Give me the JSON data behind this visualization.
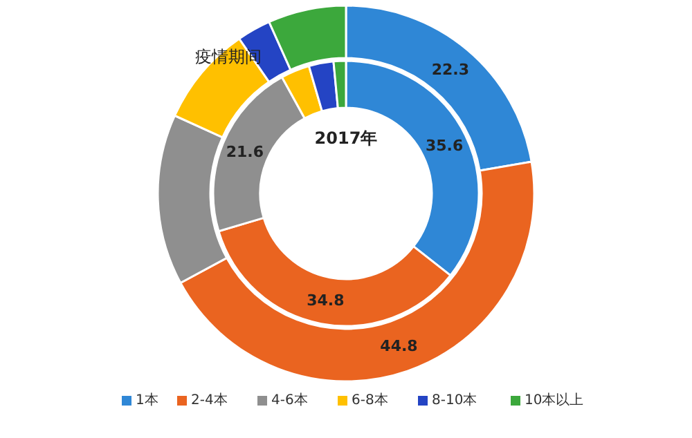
{
  "chart_data": {
    "type": "donut",
    "categories": [
      "1本",
      "2-4本",
      "4-6本",
      "6-8本",
      "8-10本",
      "10本以上"
    ],
    "colors": [
      "#2f87d6",
      "#ea6420",
      "#8f8f8f",
      "#ffc000",
      "#2444c4",
      "#3ca83c"
    ],
    "series": [
      {
        "name": "疫情期间",
        "values": [
          22.3,
          44.8,
          14.7,
          8.6,
          2.9,
          6.7
        ],
        "value_labels": [
          "22.3",
          "44.8",
          null,
          null,
          null,
          null
        ]
      },
      {
        "name": "2017年",
        "values": [
          35.6,
          34.8,
          21.6,
          3.5,
          3.0,
          1.5
        ],
        "value_labels": [
          "35.6",
          "34.8",
          "21.6",
          null,
          null,
          null
        ]
      }
    ],
    "legend": "bottom"
  }
}
